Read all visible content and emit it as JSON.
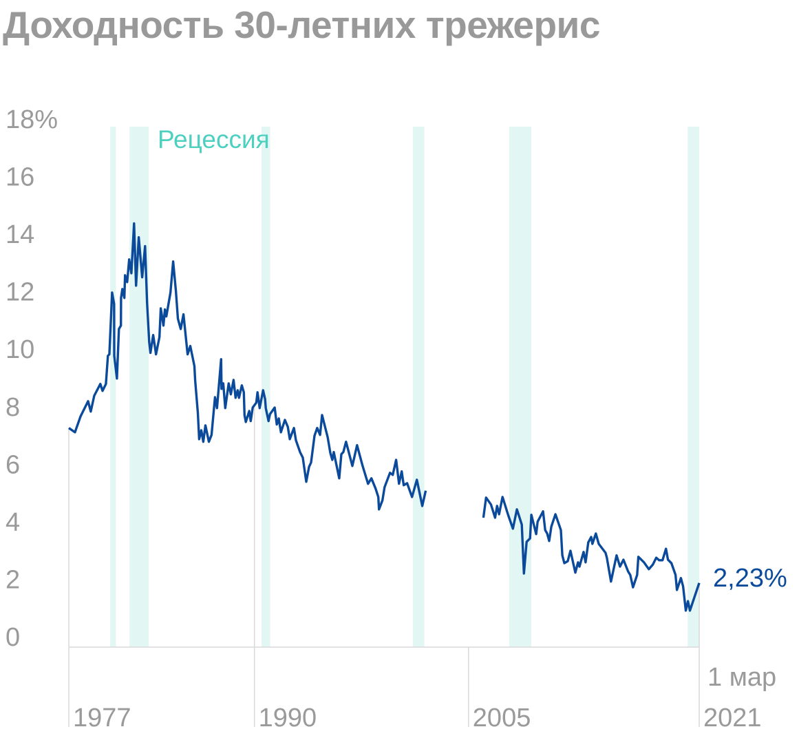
{
  "chart_data": {
    "type": "line",
    "title": "Доходность 30-летних трежерис",
    "ylim": [
      0,
      18
    ],
    "yticks": [
      "18%",
      "16",
      "14",
      "12",
      "10",
      "8",
      "6",
      "4",
      "2",
      "0"
    ],
    "ytick_values": [
      18,
      16,
      14,
      12,
      10,
      8,
      6,
      4,
      2,
      0
    ],
    "xlim": [
      1977,
      2021.16
    ],
    "xticks": [
      {
        "value": 1977,
        "label": "1977"
      },
      {
        "value": 1990,
        "label": "1990"
      },
      {
        "value": 2005,
        "label": "2005"
      },
      {
        "value": 2021.16,
        "label": "2021",
        "sublabel": "1 мар"
      }
    ],
    "grid": false,
    "recession_label": "Рецессия",
    "recessions": [
      [
        1979.9,
        1980.3
      ],
      [
        1981.25,
        1982.6
      ],
      [
        1990.5,
        1991.1
      ],
      [
        2001.1,
        2001.9
      ],
      [
        2007.85,
        2009.4
      ],
      [
        2020.35,
        2021.16
      ]
    ],
    "end_label": "2,23%",
    "colors": {
      "line": "#0b4a9a",
      "recession": "#e2f6f3",
      "recession_label": "#4dd0c0",
      "axis": "#d9d9d9",
      "text": "#9a9a9a"
    },
    "series": [
      {
        "points": [
          [
            1977.0,
            7.62
          ],
          [
            1977.43,
            7.47
          ],
          [
            1977.82,
            8.02
          ],
          [
            1978.35,
            8.55
          ],
          [
            1978.54,
            8.19
          ],
          [
            1978.78,
            8.74
          ],
          [
            1979.21,
            9.15
          ],
          [
            1979.36,
            8.91
          ],
          [
            1979.6,
            9.15
          ],
          [
            1979.74,
            10.13
          ],
          [
            1979.84,
            10.18
          ],
          [
            1980.03,
            12.33
          ],
          [
            1980.17,
            11.93
          ],
          [
            1980.18,
            10.13
          ],
          [
            1980.37,
            9.34
          ],
          [
            1980.51,
            11.06
          ],
          [
            1980.65,
            11.18
          ],
          [
            1980.66,
            12.14
          ],
          [
            1980.75,
            12.45
          ],
          [
            1980.89,
            12.14
          ],
          [
            1980.94,
            12.93
          ],
          [
            1981.09,
            12.69
          ],
          [
            1981.23,
            13.48
          ],
          [
            1981.38,
            13.0
          ],
          [
            1981.57,
            14.73
          ],
          [
            1981.71,
            12.57
          ],
          [
            1981.9,
            14.25
          ],
          [
            1982.14,
            12.86
          ],
          [
            1982.34,
            13.94
          ],
          [
            1982.48,
            11.98
          ],
          [
            1982.63,
            10.61
          ],
          [
            1982.72,
            10.23
          ],
          [
            1982.91,
            10.85
          ],
          [
            1983.11,
            10.18
          ],
          [
            1983.35,
            10.78
          ],
          [
            1983.44,
            11.78
          ],
          [
            1983.63,
            11.18
          ],
          [
            1983.73,
            11.74
          ],
          [
            1983.83,
            11.5
          ],
          [
            1984.12,
            12.33
          ],
          [
            1984.31,
            13.41
          ],
          [
            1984.5,
            12.38
          ],
          [
            1984.64,
            11.42
          ],
          [
            1984.84,
            11.06
          ],
          [
            1985.03,
            11.57
          ],
          [
            1985.32,
            10.18
          ],
          [
            1985.51,
            10.47
          ],
          [
            1985.8,
            9.77
          ],
          [
            1985.85,
            9.27
          ],
          [
            1986.04,
            8.14
          ],
          [
            1986.13,
            7.23
          ],
          [
            1986.28,
            7.54
          ],
          [
            1986.42,
            7.14
          ],
          [
            1986.57,
            7.71
          ],
          [
            1986.81,
            7.14
          ],
          [
            1987.0,
            7.38
          ],
          [
            1987.24,
            8.69
          ],
          [
            1987.38,
            8.31
          ],
          [
            1987.67,
            10.01
          ],
          [
            1987.7,
            8.98
          ],
          [
            1987.82,
            9.17
          ],
          [
            1987.96,
            8.31
          ],
          [
            1988.2,
            9.17
          ],
          [
            1988.35,
            8.79
          ],
          [
            1988.54,
            9.29
          ],
          [
            1988.68,
            8.67
          ],
          [
            1988.83,
            8.93
          ],
          [
            1988.92,
            8.67
          ],
          [
            1989.12,
            9.1
          ],
          [
            1989.26,
            8.86
          ],
          [
            1989.31,
            8.07
          ],
          [
            1989.4,
            7.83
          ],
          [
            1989.64,
            8.21
          ],
          [
            1989.74,
            7.86
          ],
          [
            1989.88,
            8.33
          ],
          [
            1990.13,
            8.5
          ],
          [
            1990.22,
            8.86
          ],
          [
            1990.37,
            8.31
          ],
          [
            1990.61,
            8.93
          ],
          [
            1990.75,
            8.62
          ],
          [
            1990.8,
            8.31
          ],
          [
            1990.99,
            7.86
          ],
          [
            1991.09,
            8.1
          ],
          [
            1991.42,
            8.33
          ],
          [
            1991.57,
            7.74
          ],
          [
            1991.71,
            7.95
          ],
          [
            1991.86,
            7.47
          ],
          [
            1992.14,
            7.9
          ],
          [
            1992.34,
            7.66
          ],
          [
            1992.48,
            7.23
          ],
          [
            1992.77,
            7.62
          ],
          [
            1992.91,
            7.19
          ],
          [
            1993.2,
            6.78
          ],
          [
            1993.39,
            6.59
          ],
          [
            1993.63,
            5.75
          ],
          [
            1993.83,
            6.27
          ],
          [
            1993.97,
            6.42
          ],
          [
            1994.21,
            7.35
          ],
          [
            1994.4,
            7.62
          ],
          [
            1994.6,
            7.38
          ],
          [
            1994.74,
            8.07
          ],
          [
            1995.13,
            7.3
          ],
          [
            1995.32,
            6.75
          ],
          [
            1995.46,
            6.51
          ],
          [
            1995.56,
            6.78
          ],
          [
            1995.94,
            5.87
          ],
          [
            1996.09,
            6.71
          ],
          [
            1996.23,
            6.78
          ],
          [
            1996.42,
            7.14
          ],
          [
            1996.86,
            6.3
          ],
          [
            1997.19,
            7.02
          ],
          [
            1997.58,
            6.3
          ],
          [
            1997.96,
            5.68
          ],
          [
            1998.2,
            5.87
          ],
          [
            1998.49,
            5.51
          ],
          [
            1998.68,
            5.22
          ],
          [
            1998.73,
            4.79
          ],
          [
            1998.97,
            5.1
          ],
          [
            1999.12,
            5.56
          ],
          [
            1999.5,
            6.06
          ],
          [
            1999.69,
            5.99
          ],
          [
            1999.93,
            6.51
          ],
          [
            2000.13,
            5.68
          ],
          [
            2000.32,
            6.11
          ],
          [
            2000.46,
            5.63
          ],
          [
            2000.7,
            5.7
          ],
          [
            2001.04,
            5.22
          ],
          [
            2001.38,
            5.82
          ],
          [
            2001.76,
            4.91
          ],
          [
            2002.0,
            5.44
          ],
          null,
          [
            2006.04,
            4.5
          ],
          [
            2006.23,
            5.2
          ],
          [
            2006.57,
            4.96
          ],
          [
            2006.86,
            4.5
          ],
          [
            2007.0,
            4.91
          ],
          [
            2007.14,
            4.62
          ],
          [
            2007.38,
            5.22
          ],
          [
            2007.77,
            4.6
          ],
          [
            2008.11,
            4.12
          ],
          [
            2008.39,
            4.79
          ],
          [
            2008.73,
            4.26
          ],
          [
            2008.88,
            2.56
          ],
          [
            2009.07,
            3.66
          ],
          [
            2009.31,
            3.78
          ],
          [
            2009.4,
            4.6
          ],
          [
            2009.74,
            3.93
          ],
          [
            2009.84,
            4.36
          ],
          [
            2010.22,
            4.72
          ],
          [
            2010.37,
            4.07
          ],
          [
            2010.51,
            3.95
          ],
          [
            2010.65,
            3.69
          ],
          [
            2010.8,
            4.19
          ],
          [
            2011.09,
            4.62
          ],
          [
            2011.47,
            4.07
          ],
          [
            2011.57,
            3.19
          ],
          [
            2011.71,
            2.92
          ],
          [
            2011.95,
            2.99
          ],
          [
            2012.14,
            3.35
          ],
          [
            2012.48,
            2.59
          ],
          [
            2012.67,
            2.95
          ],
          [
            2012.77,
            2.8
          ],
          [
            2013.06,
            3.31
          ],
          [
            2013.2,
            2.95
          ],
          [
            2013.39,
            3.64
          ],
          [
            2013.59,
            3.83
          ],
          [
            2013.68,
            3.59
          ],
          [
            2013.92,
            3.95
          ],
          [
            2014.12,
            3.59
          ],
          [
            2014.6,
            3.28
          ],
          [
            2014.69,
            3.11
          ],
          [
            2014.98,
            2.28
          ],
          [
            2015.37,
            3.19
          ],
          [
            2015.61,
            2.8
          ],
          [
            2015.85,
            3.04
          ],
          [
            2016.18,
            2.63
          ],
          [
            2016.33,
            2.51
          ],
          [
            2016.52,
            2.08
          ],
          [
            2016.81,
            2.51
          ],
          [
            2016.9,
            3.14
          ],
          [
            2017.29,
            2.95
          ],
          [
            2017.63,
            2.71
          ],
          [
            2017.91,
            2.87
          ],
          [
            2018.15,
            3.11
          ],
          [
            2018.35,
            3.02
          ],
          [
            2018.59,
            3.02
          ],
          [
            2018.83,
            3.42
          ],
          [
            2018.97,
            3.04
          ],
          [
            2019.21,
            2.92
          ],
          [
            2019.5,
            2.51
          ],
          [
            2019.6,
            1.99
          ],
          [
            2019.88,
            2.4
          ],
          [
            2020.03,
            2.11
          ],
          [
            2020.22,
            1.27
          ],
          [
            2020.37,
            1.6
          ],
          [
            2020.51,
            1.27
          ],
          [
            2021.16,
            2.23
          ]
        ]
      }
    ]
  }
}
